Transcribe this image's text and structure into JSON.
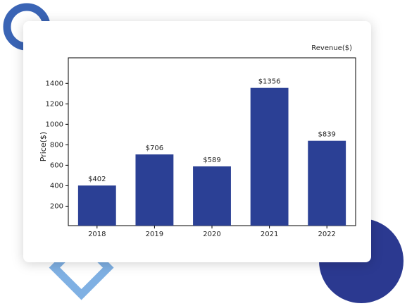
{
  "chart_data": {
    "type": "bar",
    "title": "Revenue($)",
    "y_label": "Price($)",
    "categories": [
      "2018",
      "2019",
      "2020",
      "2021",
      "2022"
    ],
    "values": [
      402,
      706,
      589,
      1356,
      839
    ],
    "value_labels": [
      "$402",
      "$706",
      "$589",
      "$1356",
      "$839"
    ],
    "color": "#2b4095",
    "ylim": [
      10,
      1650
    ],
    "yticks": [
      200,
      400,
      600,
      800,
      1000,
      1200,
      1400
    ],
    "grid": false
  }
}
